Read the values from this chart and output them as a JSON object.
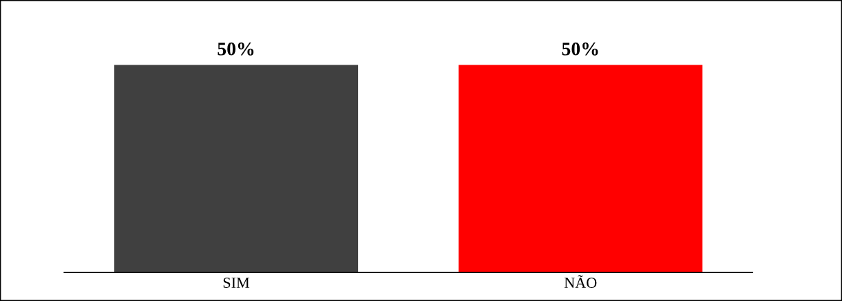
{
  "chart_data": {
    "type": "bar",
    "categories": [
      "SIM",
      "NÃO"
    ],
    "values": [
      50,
      50
    ],
    "colors": [
      "#404040",
      "#ff0000"
    ],
    "value_labels": [
      "50%",
      "50%"
    ],
    "grid": false,
    "legend": false
  }
}
